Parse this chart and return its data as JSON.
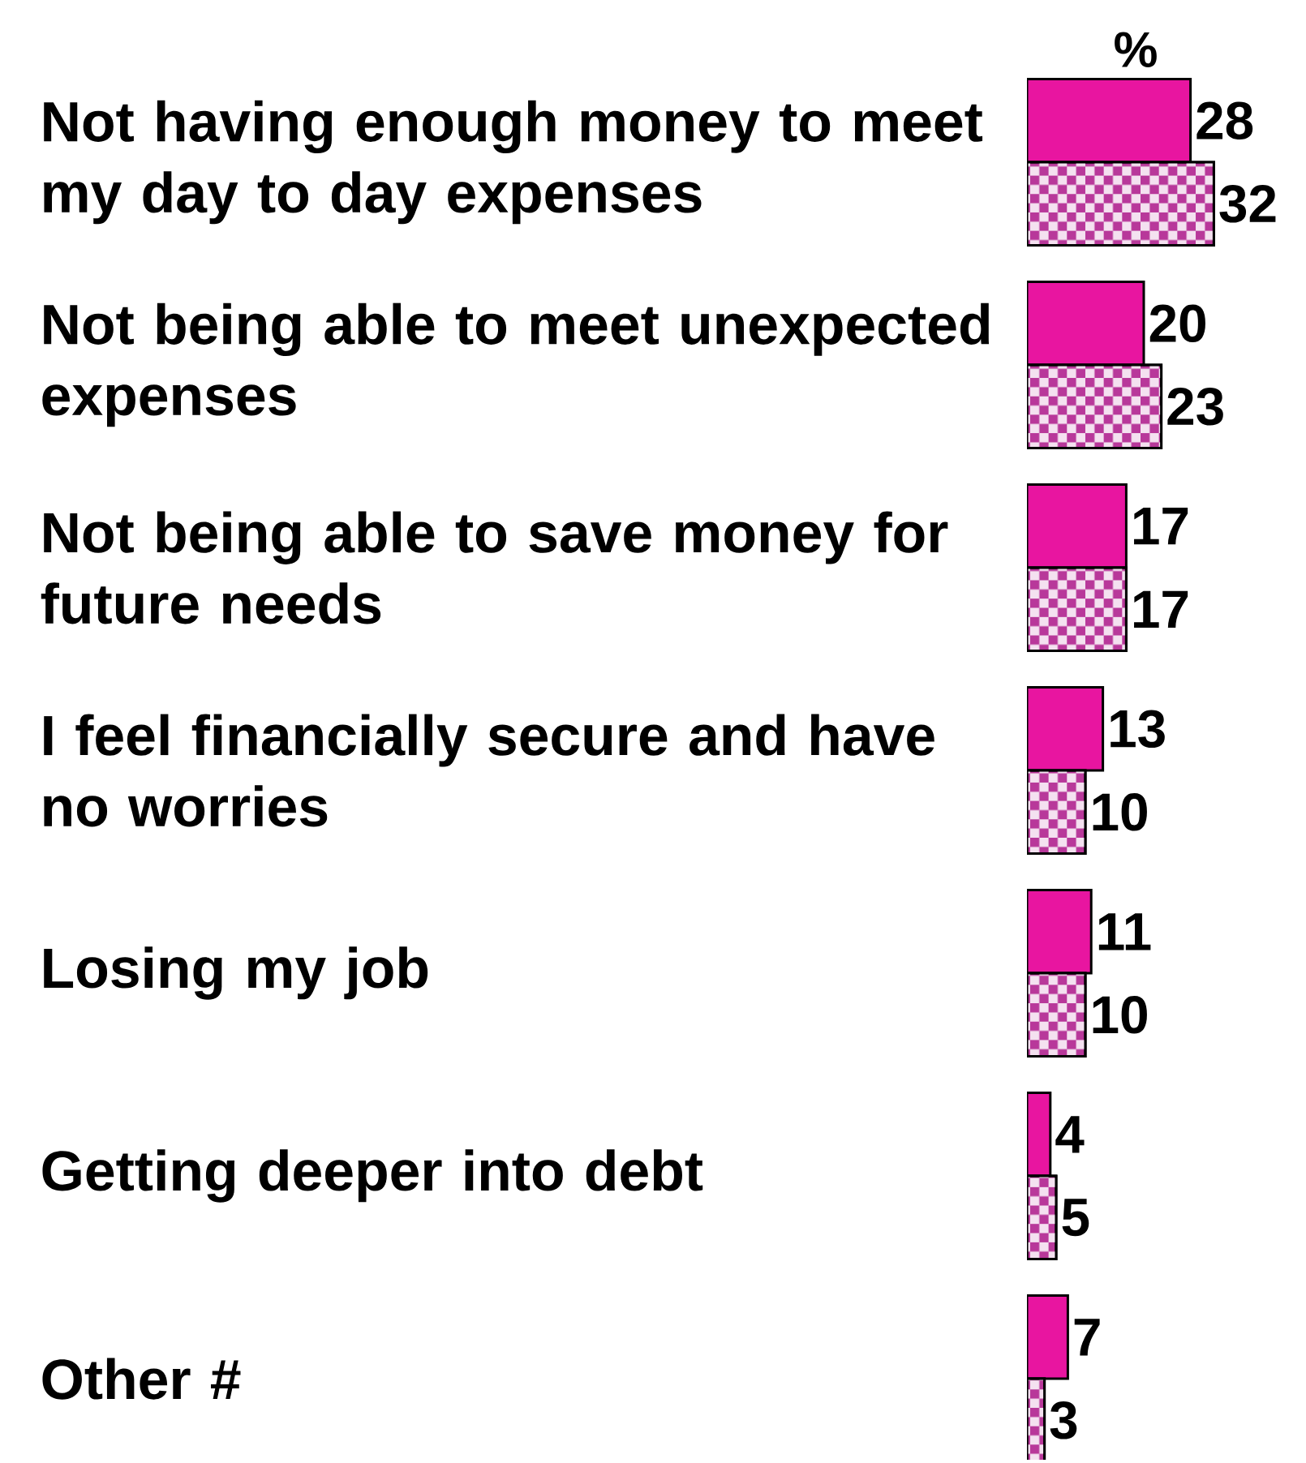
{
  "chart_data": {
    "type": "bar",
    "orientation": "horizontal",
    "annotations": [
      "%"
    ],
    "data_labels": true,
    "categories": [
      "Not having enough money to meet my day to day expenses",
      "Not being able to meet unexpected expenses",
      "Not being able to save money for future needs",
      "I feel financially secure and have no worries",
      "Losing my job",
      "Getting deeper into debt",
      "Other #"
    ],
    "series": [
      {
        "color": "#e815a0",
        "values": [
          28,
          20,
          17,
          13,
          11,
          4,
          7
        ]
      },
      {
        "color": "#b8389a",
        "values": [
          32,
          23,
          17,
          10,
          10,
          5,
          3
        ]
      }
    ]
  }
}
